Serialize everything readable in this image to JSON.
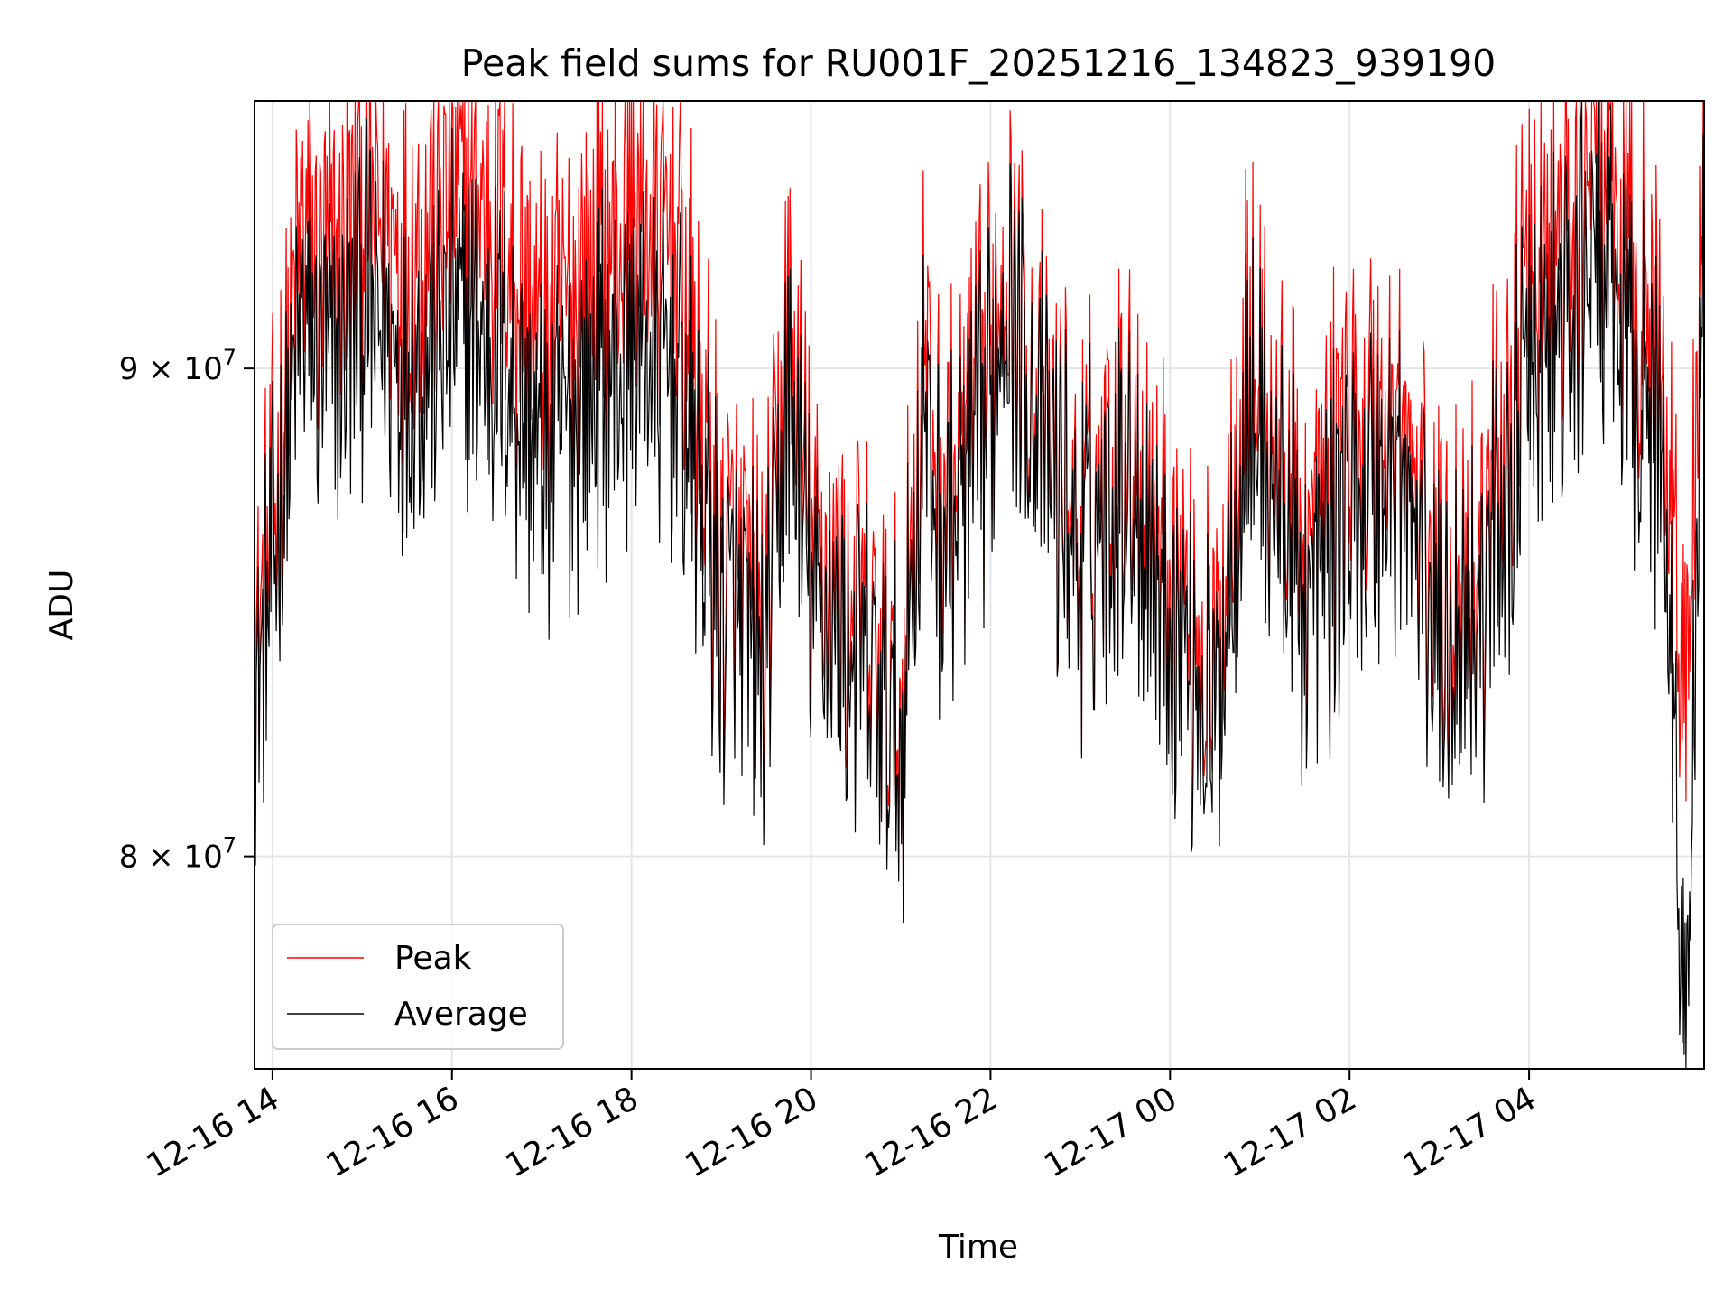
{
  "chart_data": {
    "type": "line",
    "title": "Peak field sums for RU001F_20251216_134823_939190",
    "xlabel": "Time",
    "ylabel": "ADU",
    "x_type": "datetime",
    "xlim": [
      "2025-12-16T13:48:00",
      "2025-12-17T05:57:00"
    ],
    "ylim": [
      76000000,
      96000000
    ],
    "y_scale": "log",
    "x_ticks": [
      {
        "value": "2025-12-16T14:00:00",
        "label": "12-16 14"
      },
      {
        "value": "2025-12-16T16:00:00",
        "label": "12-16 16"
      },
      {
        "value": "2025-12-16T18:00:00",
        "label": "12-16 18"
      },
      {
        "value": "2025-12-16T20:00:00",
        "label": "12-16 20"
      },
      {
        "value": "2025-12-16T22:00:00",
        "label": "12-16 22"
      },
      {
        "value": "2025-12-17T00:00:00",
        "label": "12-17 00"
      },
      {
        "value": "2025-12-17T02:00:00",
        "label": "12-17 02"
      },
      {
        "value": "2025-12-17T04:00:00",
        "label": "12-17 04"
      }
    ],
    "y_ticks": [
      {
        "value": 80000000,
        "mantissa": "8",
        "times": "×",
        "base": "10",
        "exp": "7"
      },
      {
        "value": 90000000,
        "mantissa": "9",
        "times": "×",
        "base": "10",
        "exp": "7"
      }
    ],
    "grid": true,
    "legend_position": "lower-left",
    "series": [
      {
        "name": "Peak",
        "color": "#ff0000",
        "x": [
          "2025-12-16T13:48:00",
          "2025-12-16T14:00:00",
          "2025-12-16T14:20:00",
          "2025-12-16T14:40:00",
          "2025-12-16T15:00:00",
          "2025-12-16T15:30:00",
          "2025-12-16T16:00:00",
          "2025-12-16T16:30:00",
          "2025-12-16T17:00:00",
          "2025-12-16T17:30:00",
          "2025-12-16T18:00:00",
          "2025-12-16T18:30:00",
          "2025-12-16T19:00:00",
          "2025-12-16T19:30:00",
          "2025-12-16T19:45:00",
          "2025-12-16T20:00:00",
          "2025-12-16T20:30:00",
          "2025-12-16T21:00:00",
          "2025-12-16T21:15:00",
          "2025-12-16T21:30:00",
          "2025-12-16T22:00:00",
          "2025-12-16T22:10:00",
          "2025-12-16T22:30:00",
          "2025-12-16T23:00:00",
          "2025-12-16T23:30:00",
          "2025-12-17T00:00:00",
          "2025-12-17T00:30:00",
          "2025-12-17T00:50:00",
          "2025-12-17T01:00:00",
          "2025-12-17T01:30:00",
          "2025-12-17T02:00:00",
          "2025-12-17T02:30:00",
          "2025-12-17T03:00:00",
          "2025-12-17T03:30:00",
          "2025-12-17T04:00:00",
          "2025-12-17T04:30:00",
          "2025-12-17T04:40:00",
          "2025-12-17T05:00:00",
          "2025-12-17T05:30:00",
          "2025-12-17T05:45:00",
          "2025-12-17T05:57:00"
        ],
        "values": [
          84000000,
          86500000,
          93000000,
          92000000,
          94000000,
          92500000,
          94000000,
          93500000,
          90500000,
          92000000,
          93500000,
          93000000,
          86000000,
          84500000,
          91000000,
          86000000,
          85000000,
          82500000,
          90500000,
          87000000,
          90000000,
          93500000,
          89500000,
          86500000,
          89000000,
          86000000,
          83500000,
          90500000,
          89500000,
          86000000,
          88500000,
          89000000,
          85500000,
          86000000,
          92000000,
          93000000,
          96000000,
          93000000,
          89500000,
          83000000,
          93500000
        ]
      },
      {
        "name": "Average",
        "color": "#000000",
        "x": [
          "2025-12-16T13:48:00",
          "2025-12-16T14:00:00",
          "2025-12-16T14:20:00",
          "2025-12-16T14:40:00",
          "2025-12-16T15:00:00",
          "2025-12-16T15:30:00",
          "2025-12-16T16:00:00",
          "2025-12-16T16:30:00",
          "2025-12-16T17:00:00",
          "2025-12-16T17:30:00",
          "2025-12-16T18:00:00",
          "2025-12-16T18:30:00",
          "2025-12-16T19:00:00",
          "2025-12-16T19:30:00",
          "2025-12-16T19:45:00",
          "2025-12-16T20:00:00",
          "2025-12-16T20:30:00",
          "2025-12-16T21:00:00",
          "2025-12-16T21:15:00",
          "2025-12-16T21:30:00",
          "2025-12-16T22:00:00",
          "2025-12-16T22:10:00",
          "2025-12-16T22:30:00",
          "2025-12-16T23:00:00",
          "2025-12-16T23:30:00",
          "2025-12-17T00:00:00",
          "2025-12-17T00:30:00",
          "2025-12-17T00:50:00",
          "2025-12-17T01:00:00",
          "2025-12-17T01:30:00",
          "2025-12-17T02:00:00",
          "2025-12-17T02:30:00",
          "2025-12-17T03:00:00",
          "2025-12-17T03:30:00",
          "2025-12-17T04:00:00",
          "2025-12-17T04:30:00",
          "2025-12-17T04:40:00",
          "2025-12-17T05:00:00",
          "2025-12-17T05:30:00",
          "2025-12-17T05:45:00",
          "2025-12-17T05:57:00"
        ],
        "values": [
          83000000,
          85500000,
          91000000,
          90000000,
          91500000,
          90000000,
          91000000,
          90500000,
          88000000,
          89500000,
          90500000,
          90000000,
          85000000,
          83500000,
          89500000,
          85000000,
          84000000,
          82000000,
          89000000,
          86000000,
          89000000,
          92500000,
          89000000,
          86000000,
          88000000,
          85000000,
          82500000,
          89000000,
          88500000,
          85000000,
          87000000,
          88000000,
          84500000,
          85000000,
          90000000,
          91000000,
          93000000,
          91000000,
          88000000,
          76000000,
          92500000
        ]
      }
    ]
  }
}
